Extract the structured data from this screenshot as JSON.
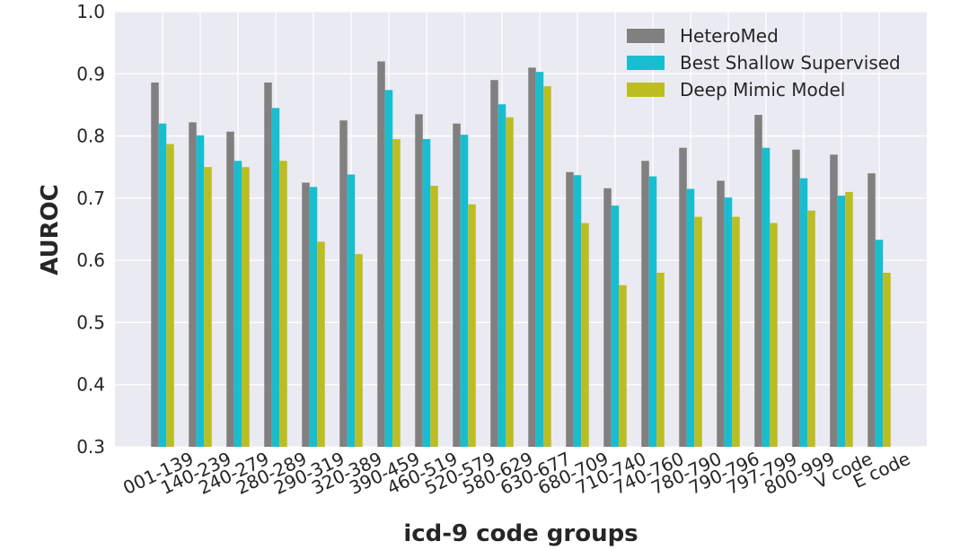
{
  "chart_data": {
    "type": "bar",
    "title": "",
    "xlabel": "icd-9 code groups",
    "ylabel": "AUROC",
    "ylim": [
      0.3,
      1.0
    ],
    "yticks": [
      "0.3",
      "0.4",
      "0.5",
      "0.6",
      "0.7",
      "0.8",
      "0.9",
      "1.0"
    ],
    "grid": true,
    "legend_position": "top-right",
    "categories": [
      "001-139",
      "140-239",
      "240-279",
      "280-289",
      "290-319",
      "320-389",
      "390-459",
      "460-519",
      "520-579",
      "580-629",
      "630-677",
      "680-709",
      "710-740",
      "740-760",
      "780-790",
      "790-796",
      "797-799",
      "800-999",
      "V code",
      "E code"
    ],
    "series": [
      {
        "name": "HeteroMed",
        "color": "#808080",
        "values": [
          0.886,
          0.822,
          0.807,
          0.886,
          0.725,
          0.825,
          0.92,
          0.835,
          0.82,
          0.89,
          0.91,
          0.742,
          0.716,
          0.76,
          0.781,
          0.728,
          0.834,
          0.778,
          0.77,
          0.74
        ]
      },
      {
        "name": "Best Shallow Supervised",
        "color": "#17becf",
        "values": [
          0.82,
          0.801,
          0.76,
          0.845,
          0.718,
          0.738,
          0.874,
          0.795,
          0.802,
          0.851,
          0.903,
          0.737,
          0.688,
          0.735,
          0.715,
          0.701,
          0.781,
          0.732,
          0.704,
          0.633
        ]
      },
      {
        "name": "Deep Mimic Model",
        "color": "#bcbd22",
        "values": [
          0.787,
          0.75,
          0.75,
          0.76,
          0.63,
          0.61,
          0.795,
          0.72,
          0.69,
          0.83,
          0.88,
          0.66,
          0.56,
          0.58,
          0.67,
          0.67,
          0.66,
          0.68,
          0.71,
          0.58
        ]
      }
    ]
  }
}
